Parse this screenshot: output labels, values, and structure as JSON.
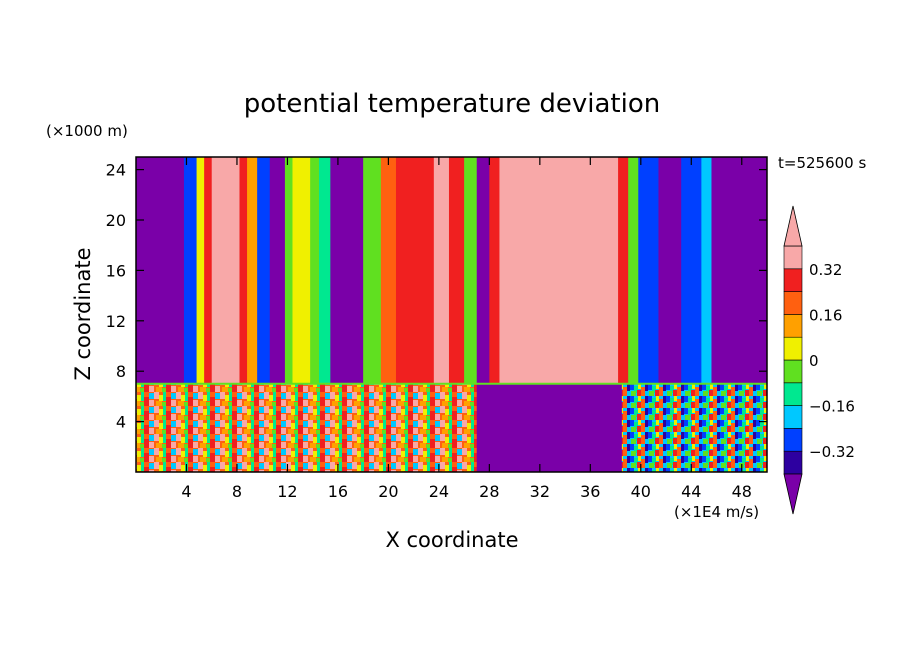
{
  "chart_data": {
    "type": "heatmap",
    "title": "potential temperature deviation",
    "xlabel": "X coordinate",
    "ylabel": "Z coordinate",
    "x_unit": "(×1E4 m/s)",
    "y_unit": "(×1000 m)",
    "time_label": "t=525600 s",
    "xlim": [
      0,
      50
    ],
    "ylim": [
      0,
      25
    ],
    "x_ticks": [
      4,
      8,
      12,
      16,
      20,
      24,
      28,
      32,
      36,
      40,
      44,
      48
    ],
    "y_ticks": [
      4,
      8,
      12,
      16,
      20,
      24
    ],
    "grid": false,
    "colorbar": {
      "placement": "right",
      "levels": [
        -0.4,
        -0.32,
        -0.24,
        -0.16,
        -0.08,
        0,
        0.08,
        0.16,
        0.24,
        0.32,
        0.4
      ],
      "tick_labels": [
        {
          "value": 0.32,
          "label": "0.32"
        },
        {
          "value": 0.16,
          "label": "0.16"
        },
        {
          "value": 0,
          "label": "0"
        },
        {
          "value": -0.16,
          "label": "−0.16"
        },
        {
          "value": -0.32,
          "label": "−0.32"
        }
      ],
      "colors": [
        "#7a00a8",
        "#2d00a0",
        "#0040ff",
        "#00c8ff",
        "#00e890",
        "#60e020",
        "#f0f000",
        "#ffa000",
        "#ff6010",
        "#f02020",
        "#f8a8a8"
      ]
    },
    "upper_layer": {
      "z_range": [
        7,
        25
      ],
      "columns": [
        {
          "x_start": 0,
          "x_end": 3.8,
          "value": -0.4
        },
        {
          "x_start": 3.8,
          "x_end": 4.8,
          "value": -0.3
        },
        {
          "x_start": 4.8,
          "x_end": 5.4,
          "value": 0.05
        },
        {
          "x_start": 5.4,
          "x_end": 6.0,
          "value": 0.3
        },
        {
          "x_start": 6.0,
          "x_end": 8.2,
          "value": 0.42
        },
        {
          "x_start": 8.2,
          "x_end": 8.8,
          "value": 0.3
        },
        {
          "x_start": 8.8,
          "x_end": 9.6,
          "value": 0.1
        },
        {
          "x_start": 9.6,
          "x_end": 10.6,
          "value": -0.25
        },
        {
          "x_start": 10.6,
          "x_end": 11.8,
          "value": -0.4
        },
        {
          "x_start": 11.8,
          "x_end": 12.4,
          "value": -0.05
        },
        {
          "x_start": 12.4,
          "x_end": 13.8,
          "value": 0.05
        },
        {
          "x_start": 13.8,
          "x_end": 14.5,
          "value": 0.0
        },
        {
          "x_start": 14.5,
          "x_end": 15.4,
          "value": -0.15
        },
        {
          "x_start": 15.4,
          "x_end": 18.0,
          "value": -0.4
        },
        {
          "x_start": 18.0,
          "x_end": 19.4,
          "value": -0.05
        },
        {
          "x_start": 19.4,
          "x_end": 20.6,
          "value": 0.2
        },
        {
          "x_start": 20.6,
          "x_end": 23.6,
          "value": 0.32
        },
        {
          "x_start": 23.6,
          "x_end": 24.8,
          "value": 0.42
        },
        {
          "x_start": 24.8,
          "x_end": 26.0,
          "value": 0.25
        },
        {
          "x_start": 26.0,
          "x_end": 27.0,
          "value": -0.05
        },
        {
          "x_start": 27.0,
          "x_end": 28.0,
          "value": -0.4
        },
        {
          "x_start": 28.0,
          "x_end": 28.8,
          "value": 0.3
        },
        {
          "x_start": 28.8,
          "x_end": 38.2,
          "value": 0.42
        },
        {
          "x_start": 38.2,
          "x_end": 39.0,
          "value": 0.25
        },
        {
          "x_start": 39.0,
          "x_end": 39.8,
          "value": 0.0
        },
        {
          "x_start": 39.8,
          "x_end": 41.4,
          "value": -0.3
        },
        {
          "x_start": 41.4,
          "x_end": 43.2,
          "value": -0.4
        },
        {
          "x_start": 43.2,
          "x_end": 44.8,
          "value": -0.3
        },
        {
          "x_start": 44.8,
          "x_end": 45.6,
          "value": -0.18
        },
        {
          "x_start": 45.6,
          "x_end": 50.0,
          "value": -0.4
        }
      ],
      "features": [
        {
          "x_center": 32.6,
          "z_top": 9.6,
          "z_bottom": 7.2,
          "half_width": 1.2,
          "value": 0.34
        }
      ]
    },
    "lower_layer": {
      "z_range": [
        0,
        7
      ],
      "description_values": [
        {
          "x_start": 0,
          "x_end": 27.0,
          "value": "mixed"
        },
        {
          "x_start": 27.0,
          "x_end": 38.5,
          "value": -0.4
        },
        {
          "x_start": 38.5,
          "x_end": 50.0,
          "value": "mixed"
        }
      ]
    }
  }
}
